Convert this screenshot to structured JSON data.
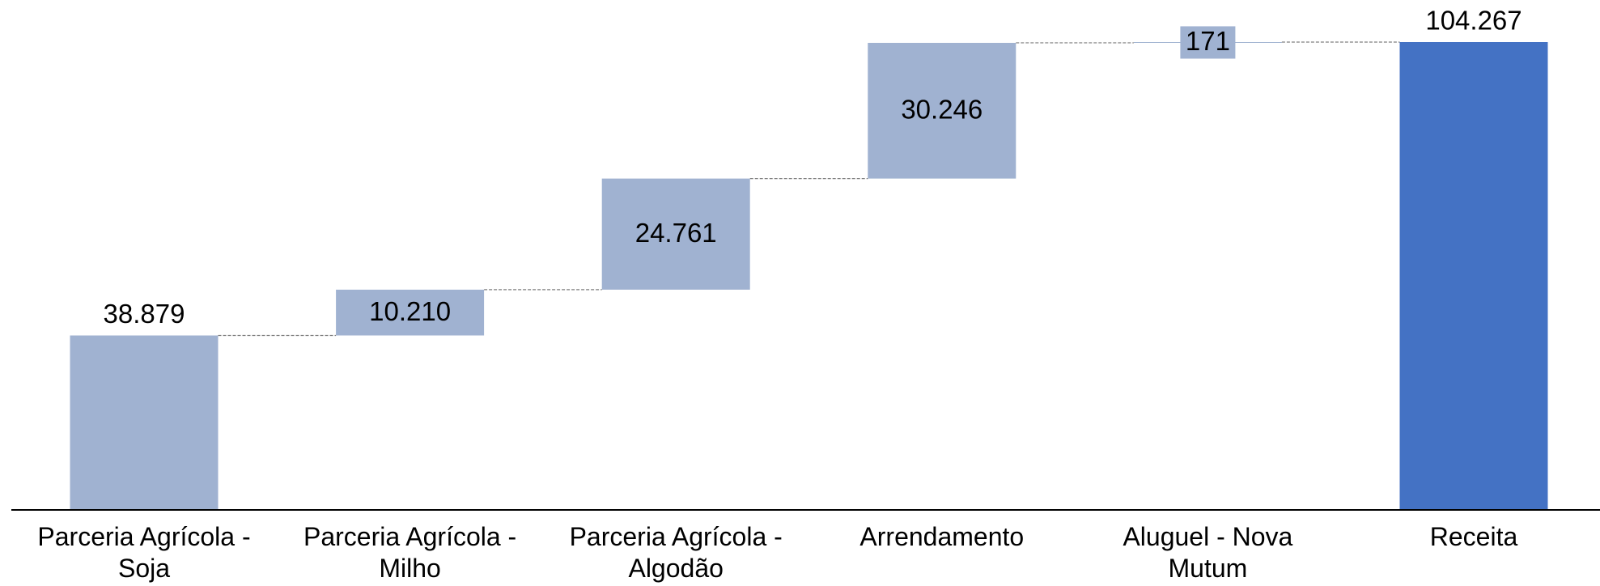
{
  "chart_data": {
    "type": "waterfall",
    "categories": [
      "Parceria Agrícola - Soja",
      "Parceria Agrícola - Milho",
      "Parceria Agrícola - Algodão",
      "Arrendamento",
      "Aluguel - Nova Mutum",
      "Receita"
    ],
    "values": [
      38879,
      10210,
      24761,
      30246,
      171,
      104267
    ],
    "value_labels": [
      "38.879",
      "10.210",
      "24.761",
      "30.246",
      "171",
      "104.267"
    ],
    "is_total": [
      false,
      false,
      false,
      false,
      false,
      true
    ],
    "colors": [
      "#a0b2d1",
      "#a0b2d1",
      "#a0b2d1",
      "#a0b2d1",
      "#a0b2d1",
      "#4472c4"
    ]
  }
}
